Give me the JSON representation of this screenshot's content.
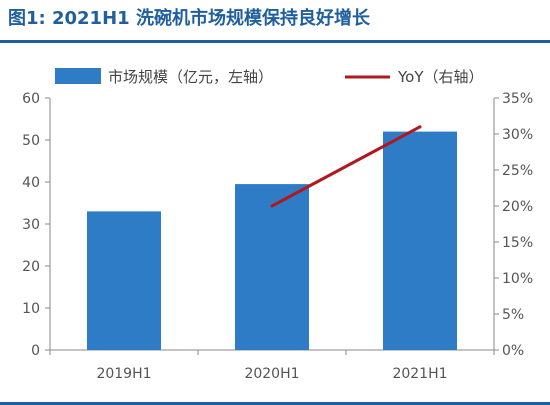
{
  "header": {
    "title": "图1: 2021H1 洗碗机市场规模保持良好增长"
  },
  "colors": {
    "accent": "#1f5f9e",
    "bar": "#2e7cc6",
    "line": "#b0171f",
    "axis": "#888888"
  },
  "chart_data": {
    "type": "bar",
    "categories": [
      "2019H1",
      "2020H1",
      "2021H1"
    ],
    "series": [
      {
        "name": "市场规模（亿元，左轴）",
        "type": "bar",
        "axis": "left",
        "values": [
          33,
          39.5,
          52
        ]
      },
      {
        "name": "YoY（右轴）",
        "type": "line",
        "axis": "right",
        "values": [
          null,
          20,
          31
        ]
      }
    ],
    "ylim_left": [
      0,
      60
    ],
    "yticks_left": [
      "0",
      "10",
      "20",
      "30",
      "40",
      "50",
      "60"
    ],
    "ylim_right": [
      0,
      35
    ],
    "yticks_right": [
      "0%",
      "5%",
      "10%",
      "15%",
      "20%",
      "25%",
      "30%",
      "35%"
    ],
    "legend_position": "top",
    "grid": false
  }
}
